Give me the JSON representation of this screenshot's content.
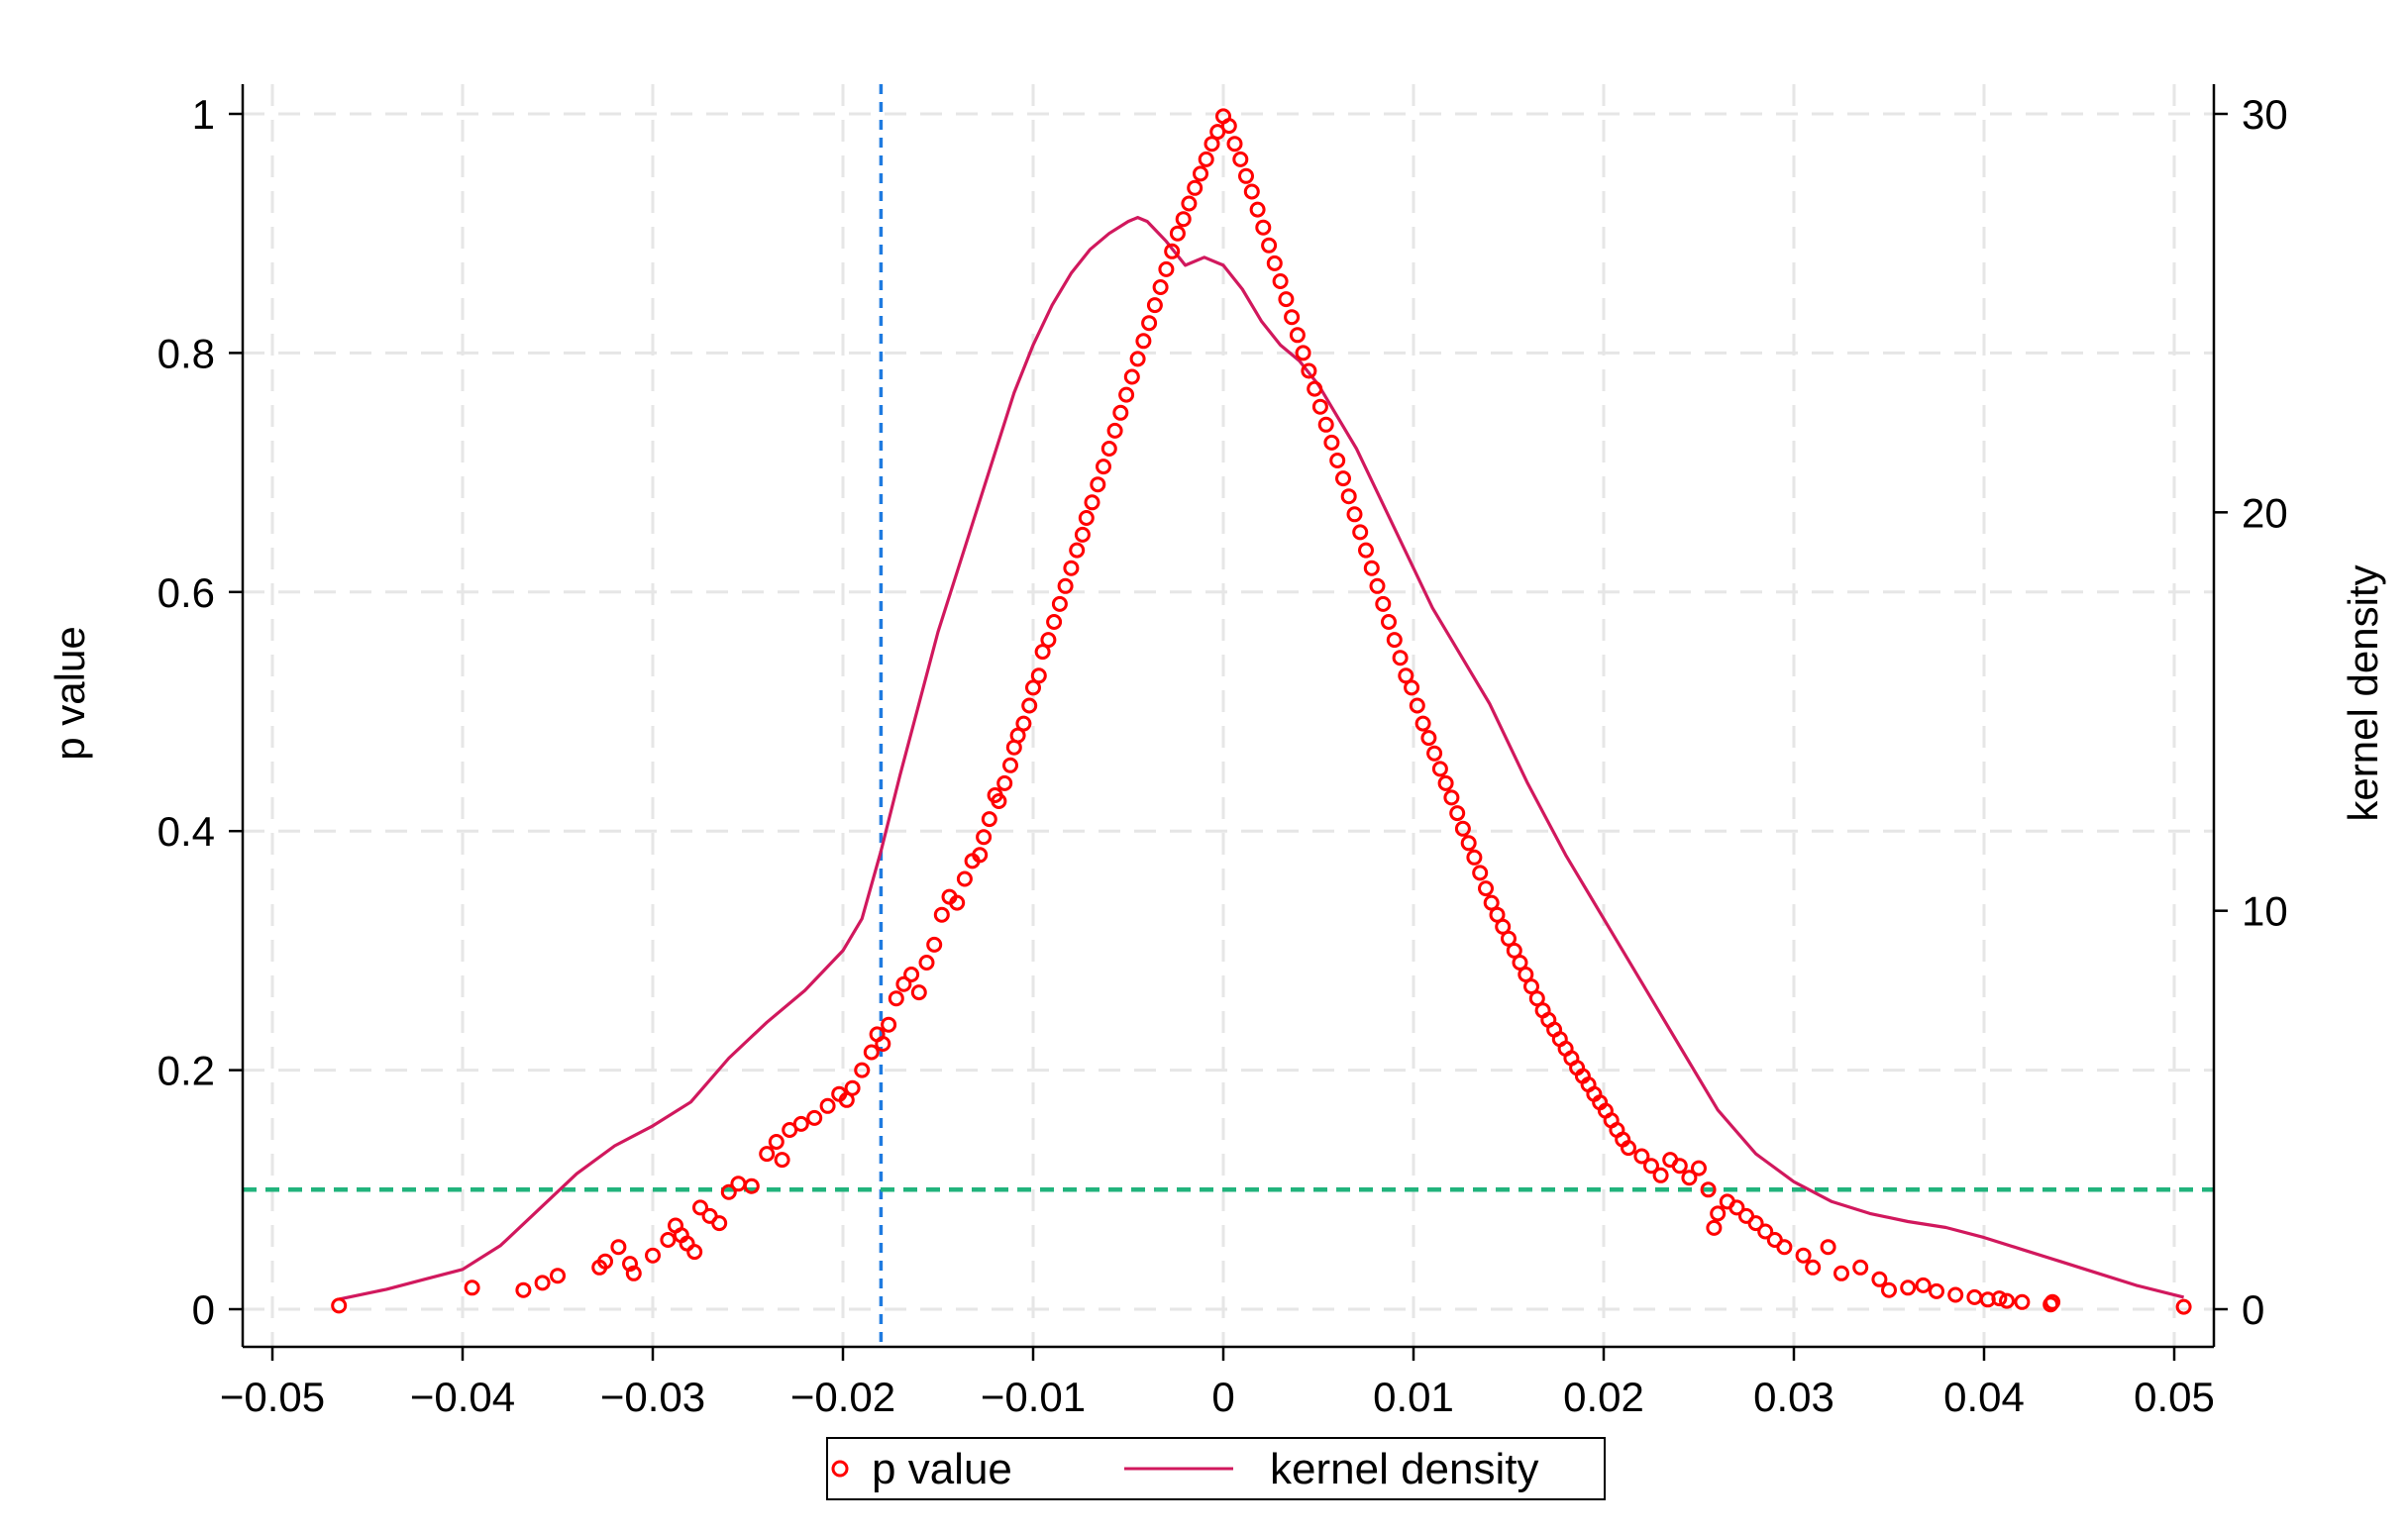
{
  "chart_data": {
    "type": "scatter",
    "title": "",
    "xlabel": "",
    "ylabel": "p value",
    "y2label": "kernel density",
    "xlim": [
      -0.05,
      0.05
    ],
    "ylim": [
      0,
      1
    ],
    "y2lim": [
      0,
      30
    ],
    "xticks": [
      -0.05,
      -0.04,
      -0.03,
      -0.02,
      -0.01,
      0,
      0.01,
      0.02,
      0.03,
      0.04,
      0.05
    ],
    "xtick_labels": [
      "−0.05",
      "−0.04",
      "−0.03",
      "−0.02",
      "−0.01",
      "0",
      "0.01",
      "0.02",
      "0.03",
      "0.04",
      "0.05"
    ],
    "yticks": [
      0,
      0.2,
      0.4,
      0.6,
      0.8,
      1
    ],
    "ytick_labels": [
      "0",
      "0.2",
      "0.4",
      "0.6",
      "0.8",
      "1"
    ],
    "y2ticks": [
      0,
      10,
      20,
      30
    ],
    "y2tick_labels": [
      "0",
      "10",
      "20",
      "30"
    ],
    "grid": true,
    "legend_position": "bottom-center",
    "colors": {
      "pvalue": "#ff0000",
      "density": "#d1185d",
      "vline": "#1f7be0",
      "hline": "#21b37c",
      "grid": "#e6e6e6"
    },
    "reference_lines": {
      "vertical_x": -0.018,
      "horizontal_y": 0.1
    },
    "series": [
      {
        "name": "p value",
        "kind": "scatter",
        "axis": "left",
        "points": [
          [
            -0.0465,
            0.003
          ],
          [
            -0.0395,
            0.018
          ],
          [
            -0.0368,
            0.016
          ],
          [
            -0.0358,
            0.022
          ],
          [
            -0.035,
            0.028
          ],
          [
            -0.0328,
            0.035
          ],
          [
            -0.0325,
            0.04
          ],
          [
            -0.0318,
            0.052
          ],
          [
            -0.0312,
            0.038
          ],
          [
            -0.031,
            0.03
          ],
          [
            -0.03,
            0.045
          ],
          [
            -0.0292,
            0.058
          ],
          [
            -0.0288,
            0.07
          ],
          [
            -0.0285,
            0.062
          ],
          [
            -0.0282,
            0.055
          ],
          [
            -0.0278,
            0.048
          ],
          [
            -0.0275,
            0.085
          ],
          [
            -0.027,
            0.078
          ],
          [
            -0.0265,
            0.072
          ],
          [
            -0.026,
            0.098
          ],
          [
            -0.0255,
            0.105
          ],
          [
            -0.0248,
            0.103
          ],
          [
            -0.024,
            0.13
          ],
          [
            -0.0235,
            0.14
          ],
          [
            -0.0232,
            0.125
          ],
          [
            -0.0228,
            0.15
          ],
          [
            -0.0222,
            0.155
          ],
          [
            -0.0215,
            0.16
          ],
          [
            -0.0208,
            0.17
          ],
          [
            -0.0202,
            0.18
          ],
          [
            -0.0198,
            0.175
          ],
          [
            -0.0195,
            0.185
          ],
          [
            -0.019,
            0.2
          ],
          [
            -0.0185,
            0.215
          ],
          [
            -0.0182,
            0.23
          ],
          [
            -0.0179,
            0.222
          ],
          [
            -0.0176,
            0.238
          ],
          [
            -0.0172,
            0.26
          ],
          [
            -0.0168,
            0.272
          ],
          [
            -0.0164,
            0.28
          ],
          [
            -0.016,
            0.265
          ],
          [
            -0.0156,
            0.29
          ],
          [
            -0.0152,
            0.305
          ],
          [
            -0.0148,
            0.33
          ],
          [
            -0.0144,
            0.345
          ],
          [
            -0.014,
            0.34
          ],
          [
            -0.0136,
            0.36
          ],
          [
            -0.0132,
            0.375
          ],
          [
            -0.0128,
            0.38
          ],
          [
            -0.0126,
            0.395
          ],
          [
            -0.0123,
            0.41
          ],
          [
            -0.012,
            0.43
          ],
          [
            -0.0118,
            0.425
          ],
          [
            -0.0115,
            0.44
          ],
          [
            -0.0112,
            0.455
          ],
          [
            -0.011,
            0.47
          ],
          [
            -0.0108,
            0.48
          ],
          [
            -0.0105,
            0.49
          ],
          [
            -0.0102,
            0.505
          ],
          [
            -0.01,
            0.52
          ],
          [
            -0.0097,
            0.53
          ],
          [
            -0.0095,
            0.55
          ],
          [
            -0.0092,
            0.56
          ],
          [
            -0.0089,
            0.575
          ],
          [
            -0.0086,
            0.59
          ],
          [
            -0.0083,
            0.605
          ],
          [
            -0.008,
            0.62
          ],
          [
            -0.0077,
            0.635
          ],
          [
            -0.0074,
            0.648
          ],
          [
            -0.0072,
            0.662
          ],
          [
            -0.0069,
            0.675
          ],
          [
            -0.0066,
            0.69
          ],
          [
            -0.0063,
            0.705
          ],
          [
            -0.006,
            0.72
          ],
          [
            -0.0057,
            0.735
          ],
          [
            -0.0054,
            0.75
          ],
          [
            -0.0051,
            0.765
          ],
          [
            -0.0048,
            0.78
          ],
          [
            -0.0045,
            0.795
          ],
          [
            -0.0042,
            0.81
          ],
          [
            -0.0039,
            0.825
          ],
          [
            -0.0036,
            0.84
          ],
          [
            -0.0033,
            0.855
          ],
          [
            -0.003,
            0.87
          ],
          [
            -0.0027,
            0.885
          ],
          [
            -0.0024,
            0.9
          ],
          [
            -0.0021,
            0.912
          ],
          [
            -0.0018,
            0.925
          ],
          [
            -0.0015,
            0.938
          ],
          [
            -0.0012,
            0.95
          ],
          [
            -0.0009,
            0.962
          ],
          [
            -0.0006,
            0.975
          ],
          [
            -0.0003,
            0.985
          ],
          [
            0.0,
            0.998
          ],
          [
            0.0003,
            0.99
          ],
          [
            0.0006,
            0.975
          ],
          [
            0.0009,
            0.962
          ],
          [
            0.0012,
            0.948
          ],
          [
            0.0015,
            0.935
          ],
          [
            0.0018,
            0.92
          ],
          [
            0.0021,
            0.905
          ],
          [
            0.0024,
            0.89
          ],
          [
            0.0027,
            0.875
          ],
          [
            0.003,
            0.86
          ],
          [
            0.0033,
            0.845
          ],
          [
            0.0036,
            0.83
          ],
          [
            0.0039,
            0.815
          ],
          [
            0.0042,
            0.8
          ],
          [
            0.0045,
            0.785
          ],
          [
            0.0048,
            0.77
          ],
          [
            0.0051,
            0.755
          ],
          [
            0.0054,
            0.74
          ],
          [
            0.0057,
            0.725
          ],
          [
            0.006,
            0.71
          ],
          [
            0.0063,
            0.695
          ],
          [
            0.0066,
            0.68
          ],
          [
            0.0069,
            0.665
          ],
          [
            0.0072,
            0.65
          ],
          [
            0.0075,
            0.635
          ],
          [
            0.0078,
            0.62
          ],
          [
            0.0081,
            0.605
          ],
          [
            0.0084,
            0.59
          ],
          [
            0.0087,
            0.575
          ],
          [
            0.009,
            0.56
          ],
          [
            0.0093,
            0.545
          ],
          [
            0.0096,
            0.53
          ],
          [
            0.0099,
            0.52
          ],
          [
            0.0102,
            0.505
          ],
          [
            0.0105,
            0.49
          ],
          [
            0.0108,
            0.478
          ],
          [
            0.0111,
            0.465
          ],
          [
            0.0114,
            0.452
          ],
          [
            0.0117,
            0.44
          ],
          [
            0.012,
            0.428
          ],
          [
            0.0123,
            0.415
          ],
          [
            0.0126,
            0.402
          ],
          [
            0.0129,
            0.39
          ],
          [
            0.0132,
            0.378
          ],
          [
            0.0135,
            0.365
          ],
          [
            0.0138,
            0.352
          ],
          [
            0.0141,
            0.34
          ],
          [
            0.0144,
            0.33
          ],
          [
            0.0147,
            0.32
          ],
          [
            0.015,
            0.31
          ],
          [
            0.0153,
            0.3
          ],
          [
            0.0156,
            0.29
          ],
          [
            0.0159,
            0.28
          ],
          [
            0.0162,
            0.27
          ],
          [
            0.0165,
            0.26
          ],
          [
            0.0168,
            0.25
          ],
          [
            0.0171,
            0.242
          ],
          [
            0.0174,
            0.234
          ],
          [
            0.0177,
            0.226
          ],
          [
            0.018,
            0.218
          ],
          [
            0.0183,
            0.21
          ],
          [
            0.0186,
            0.202
          ],
          [
            0.0189,
            0.195
          ],
          [
            0.0192,
            0.188
          ],
          [
            0.0195,
            0.18
          ],
          [
            0.0198,
            0.173
          ],
          [
            0.0201,
            0.166
          ],
          [
            0.0204,
            0.158
          ],
          [
            0.0207,
            0.15
          ],
          [
            0.021,
            0.142
          ],
          [
            0.0213,
            0.135
          ],
          [
            0.022,
            0.128
          ],
          [
            0.0225,
            0.12
          ],
          [
            0.023,
            0.112
          ],
          [
            0.0235,
            0.125
          ],
          [
            0.024,
            0.12
          ],
          [
            0.0245,
            0.11
          ],
          [
            0.025,
            0.118
          ],
          [
            0.0255,
            0.1
          ],
          [
            0.026,
            0.08
          ],
          [
            0.0258,
            0.068
          ],
          [
            0.0265,
            0.09
          ],
          [
            0.027,
            0.085
          ],
          [
            0.0275,
            0.078
          ],
          [
            0.028,
            0.072
          ],
          [
            0.0285,
            0.065
          ],
          [
            0.029,
            0.058
          ],
          [
            0.0295,
            0.052
          ],
          [
            0.0305,
            0.045
          ],
          [
            0.031,
            0.035
          ],
          [
            0.0318,
            0.052
          ],
          [
            0.0325,
            0.03
          ],
          [
            0.0335,
            0.035
          ],
          [
            0.0345,
            0.025
          ],
          [
            0.035,
            0.016
          ],
          [
            0.036,
            0.018
          ],
          [
            0.0368,
            0.02
          ],
          [
            0.0375,
            0.015
          ],
          [
            0.0385,
            0.012
          ],
          [
            0.0395,
            0.01
          ],
          [
            0.0402,
            0.008
          ],
          [
            0.0408,
            0.009
          ],
          [
            0.0412,
            0.007
          ],
          [
            0.042,
            0.006
          ],
          [
            0.0435,
            0.004
          ],
          [
            0.0436,
            0.006
          ],
          [
            0.0505,
            0.002
          ]
        ]
      },
      {
        "name": "kernel density",
        "kind": "line",
        "axis": "right",
        "points": [
          [
            -0.0465,
            0.25
          ],
          [
            -0.044,
            0.5
          ],
          [
            -0.042,
            0.75
          ],
          [
            -0.04,
            1.0
          ],
          [
            -0.038,
            1.6
          ],
          [
            -0.036,
            2.5
          ],
          [
            -0.034,
            3.4
          ],
          [
            -0.032,
            4.1
          ],
          [
            -0.03,
            4.6
          ],
          [
            -0.028,
            5.2
          ],
          [
            -0.026,
            6.3
          ],
          [
            -0.024,
            7.2
          ],
          [
            -0.022,
            8.0
          ],
          [
            -0.02,
            9.0
          ],
          [
            -0.019,
            9.8
          ],
          [
            -0.018,
            11.5
          ],
          [
            -0.017,
            13.4
          ],
          [
            -0.016,
            15.2
          ],
          [
            -0.015,
            17.0
          ],
          [
            -0.014,
            18.5
          ],
          [
            -0.013,
            20.0
          ],
          [
            -0.012,
            21.5
          ],
          [
            -0.011,
            23.0
          ],
          [
            -0.01,
            24.2
          ],
          [
            -0.009,
            25.2
          ],
          [
            -0.008,
            26.0
          ],
          [
            -0.007,
            26.6
          ],
          [
            -0.006,
            27.0
          ],
          [
            -0.005,
            27.3
          ],
          [
            -0.0045,
            27.4
          ],
          [
            -0.004,
            27.3
          ],
          [
            -0.003,
            26.8
          ],
          [
            -0.002,
            26.2
          ],
          [
            -0.001,
            26.4
          ],
          [
            0.0,
            26.2
          ],
          [
            0.001,
            25.6
          ],
          [
            0.002,
            24.8
          ],
          [
            0.003,
            24.2
          ],
          [
            0.004,
            23.8
          ],
          [
            0.005,
            23.2
          ],
          [
            0.006,
            22.4
          ],
          [
            0.007,
            21.6
          ],
          [
            0.008,
            20.6
          ],
          [
            0.009,
            19.6
          ],
          [
            0.01,
            18.6
          ],
          [
            0.011,
            17.6
          ],
          [
            0.012,
            16.8
          ],
          [
            0.013,
            16.0
          ],
          [
            0.014,
            15.2
          ],
          [
            0.015,
            14.2
          ],
          [
            0.016,
            13.2
          ],
          [
            0.017,
            12.3
          ],
          [
            0.018,
            11.4
          ],
          [
            0.019,
            10.6
          ],
          [
            0.02,
            9.8
          ],
          [
            0.022,
            8.2
          ],
          [
            0.024,
            6.6
          ],
          [
            0.026,
            5.0
          ],
          [
            0.028,
            3.9
          ],
          [
            0.03,
            3.2
          ],
          [
            0.032,
            2.7
          ],
          [
            0.034,
            2.4
          ],
          [
            0.036,
            2.2
          ],
          [
            0.038,
            2.05
          ],
          [
            0.04,
            1.8
          ],
          [
            0.042,
            1.5
          ],
          [
            0.044,
            1.2
          ],
          [
            0.046,
            0.9
          ],
          [
            0.048,
            0.6
          ],
          [
            0.0505,
            0.3
          ]
        ]
      }
    ]
  }
}
